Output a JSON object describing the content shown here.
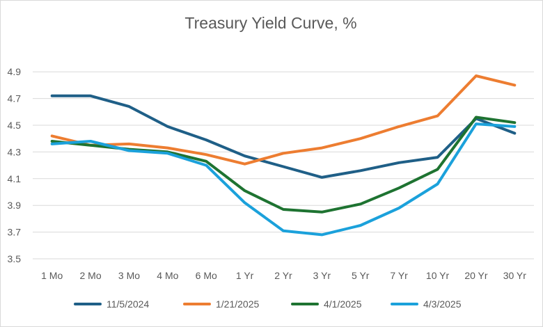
{
  "chart_data": {
    "type": "line",
    "title": "Treasury Yield Curve, %",
    "xlabel": "",
    "ylabel": "",
    "categories": [
      "1 Mo",
      "2 Mo",
      "3 Mo",
      "4 Mo",
      "6 Mo",
      "1 Yr",
      "2 Yr",
      "3 Yr",
      "5 Yr",
      "7 Yr",
      "10 Yr",
      "20 Yr",
      "30 Yr"
    ],
    "ylim": [
      3.5,
      5.0
    ],
    "yticks": [
      "3.5",
      "3.7",
      "3.9",
      "4.1",
      "4.3",
      "4.5",
      "4.7",
      "4.9"
    ],
    "grid": "horizontal",
    "legend": "bottom",
    "series": [
      {
        "name": "11/5/2024",
        "color": "#1f5f87",
        "values": [
          4.72,
          4.72,
          4.64,
          4.49,
          4.39,
          4.27,
          4.19,
          4.11,
          4.16,
          4.22,
          4.26,
          4.55,
          4.44
        ]
      },
      {
        "name": "1/21/2025",
        "color": "#ed7d31",
        "values": [
          4.42,
          4.35,
          4.36,
          4.33,
          4.28,
          4.21,
          4.29,
          4.33,
          4.4,
          4.49,
          4.57,
          4.87,
          4.8
        ]
      },
      {
        "name": "4/1/2025",
        "color": "#1e7331",
        "values": [
          4.38,
          4.35,
          4.32,
          4.3,
          4.23,
          4.01,
          3.87,
          3.85,
          3.91,
          4.03,
          4.17,
          4.56,
          4.52
        ]
      },
      {
        "name": "4/3/2025",
        "color": "#1ba1db",
        "values": [
          4.36,
          4.38,
          4.31,
          4.29,
          4.2,
          3.92,
          3.71,
          3.68,
          3.75,
          3.88,
          4.06,
          4.51,
          4.49
        ]
      }
    ]
  }
}
